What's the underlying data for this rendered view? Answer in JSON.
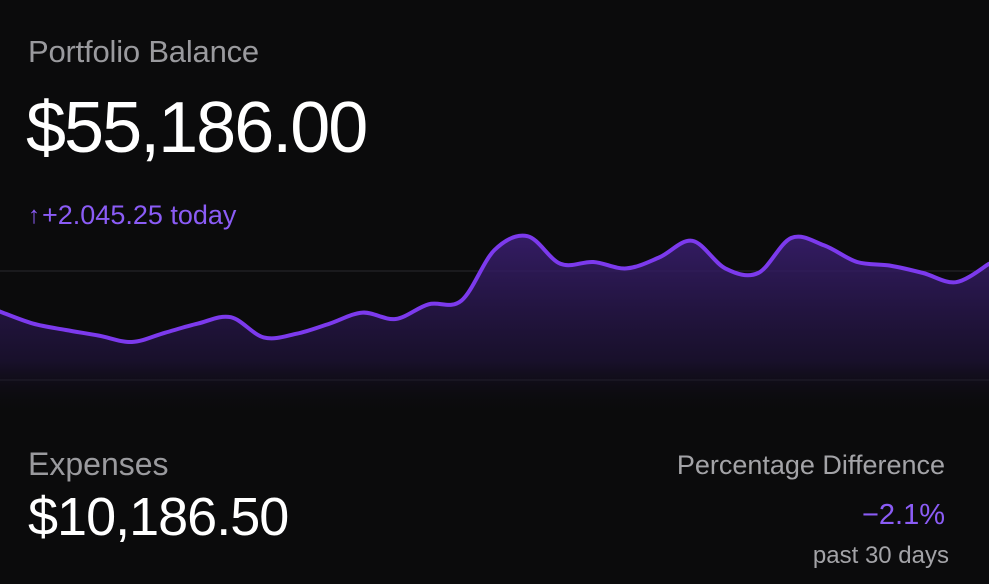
{
  "portfolio": {
    "title": "Portfolio Balance",
    "balance": "$55,186.00",
    "change_arrow": "↑",
    "change_text": "+2.045.25 today"
  },
  "chart_data": {
    "type": "area",
    "values": [
      58,
      45,
      38,
      32,
      25,
      35,
      45,
      52,
      30,
      34,
      45,
      57,
      50,
      66,
      70,
      125,
      140,
      110,
      112,
      105,
      117,
      135,
      105,
      100,
      138,
      130,
      112,
      108,
      100,
      90,
      110
    ],
    "line_color": "#7c3aed",
    "grid": true
  },
  "expenses": {
    "label": "Expenses",
    "value": "$10,186.50"
  },
  "difference": {
    "label": "Percentage Difference",
    "value": "−2.1%",
    "period": "past 30 days"
  },
  "colors": {
    "accent": "#8b5cf6",
    "background": "#0b0b0c",
    "muted_text": "#9a9a9e"
  }
}
